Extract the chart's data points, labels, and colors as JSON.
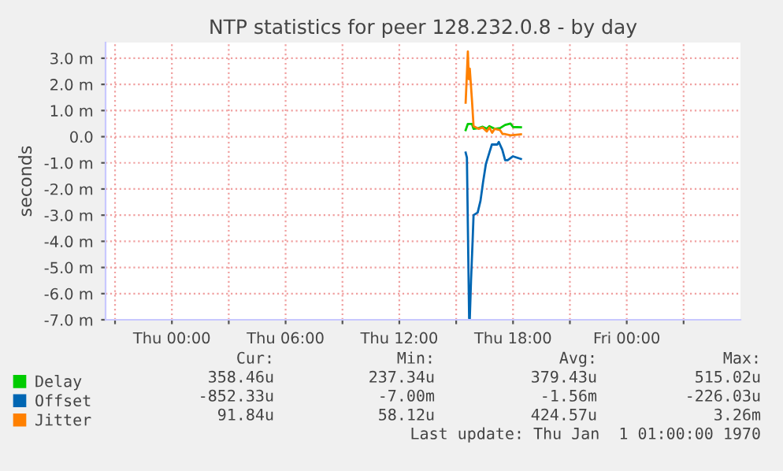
{
  "chart_data": {
    "type": "line",
    "title": "NTP statistics for peer 128.232.0.8 - by day",
    "ylabel": "seconds",
    "xlim": [
      "1969-12-31T20:30",
      "1970-01-02T06:00"
    ],
    "xticks": [
      {
        "value": "1969-12-31T21:00",
        "label": null
      },
      {
        "value": "1970-01-01T00:00",
        "label": "Thu 00:00"
      },
      {
        "value": "1970-01-01T03:00",
        "label": null
      },
      {
        "value": "1970-01-01T06:00",
        "label": "Thu 06:00"
      },
      {
        "value": "1970-01-01T09:00",
        "label": null
      },
      {
        "value": "1970-01-01T12:00",
        "label": "Thu 12:00"
      },
      {
        "value": "1970-01-01T15:00",
        "label": null
      },
      {
        "value": "1970-01-01T18:00",
        "label": "Thu 18:00"
      },
      {
        "value": "1970-01-01T21:00",
        "label": null
      },
      {
        "value": "1970-01-02T00:00",
        "label": "Fri 00:00"
      },
      {
        "value": "1970-01-02T03:00",
        "label": null
      }
    ],
    "ylim": [
      -7,
      3.6
    ],
    "yticks": [
      {
        "value": -7,
        "label": "-7.0 m"
      },
      {
        "value": -6,
        "label": "-6.0 m"
      },
      {
        "value": -5,
        "label": "-5.0 m"
      },
      {
        "value": -4,
        "label": "-4.0 m"
      },
      {
        "value": -3,
        "label": "-3.0 m"
      },
      {
        "value": -2,
        "label": "-2.0 m"
      },
      {
        "value": -1,
        "label": "-1.0 m"
      },
      {
        "value": 0,
        "label": "0.0"
      },
      {
        "value": 1,
        "label": "1.0 m"
      },
      {
        "value": 2,
        "label": "2.0 m"
      },
      {
        "value": 3,
        "label": "3.0 m"
      }
    ],
    "grid": true,
    "legend": "bottom",
    "series": [
      {
        "name": "Delay",
        "color": "#00cc00",
        "x": [
          "1970-01-01T15:30",
          "1970-01-01T15:37",
          "1970-01-01T15:50",
          "1970-01-01T15:55",
          "1970-01-01T16:11",
          "1970-01-01T16:24",
          "1970-01-01T16:37",
          "1970-01-01T16:45",
          "1970-01-01T17:02",
          "1970-01-01T17:19",
          "1970-01-01T17:35",
          "1970-01-01T17:52",
          "1970-01-01T18:00",
          "1970-01-01T18:25"
        ],
        "values": [
          0.25,
          0.49,
          0.49,
          0.3,
          0.33,
          0.38,
          0.3,
          0.4,
          0.3,
          0.33,
          0.45,
          0.5,
          0.37,
          0.36
        ]
      },
      {
        "name": "Offset",
        "color": "#0066b3",
        "x": [
          "1970-01-01T15:30",
          "1970-01-01T15:34",
          "1970-01-01T15:41",
          "1970-01-01T15:43",
          "1970-01-01T15:47",
          "1970-01-01T15:52",
          "1970-01-01T15:55",
          "1970-01-01T16:08",
          "1970-01-01T16:17",
          "1970-01-01T16:25",
          "1970-01-01T16:34",
          "1970-01-01T16:45",
          "1970-01-01T16:53",
          "1970-01-01T17:10",
          "1970-01-01T17:15",
          "1970-01-01T17:26",
          "1970-01-01T17:35",
          "1970-01-01T17:43",
          "1970-01-01T18:00",
          "1970-01-01T18:25"
        ],
        "values": [
          -0.61,
          -0.8,
          -6.94,
          -7.0,
          -5.5,
          -4.0,
          -3.0,
          -2.9,
          -2.45,
          -1.75,
          -1.05,
          -0.61,
          -0.3,
          -0.3,
          -0.2,
          -0.5,
          -0.9,
          -0.9,
          -0.75,
          -0.85
        ]
      },
      {
        "name": "Jitter",
        "color": "#ff8000",
        "x": [
          "1970-01-01T15:30",
          "1970-01-01T15:37",
          "1970-01-01T15:40",
          "1970-01-01T15:43",
          "1970-01-01T15:50",
          "1970-01-01T15:55",
          "1970-01-01T16:11",
          "1970-01-01T16:24",
          "1970-01-01T16:37",
          "1970-01-01T16:45",
          "1970-01-01T16:54",
          "1970-01-01T17:02",
          "1970-01-01T17:19",
          "1970-01-01T17:27",
          "1970-01-01T17:35",
          "1970-01-01T17:52",
          "1970-01-01T18:25"
        ],
        "values": [
          1.3,
          3.26,
          2.2,
          2.6,
          1.4,
          0.4,
          0.3,
          0.35,
          0.2,
          0.35,
          0.15,
          0.3,
          0.25,
          0.1,
          0.1,
          0.05,
          0.09
        ]
      }
    ],
    "annotations": [
      "Cur:",
      "Min:",
      "Avg:",
      "Max:",
      "358.46u",
      "237.34u",
      "379.43u",
      "515.02u",
      "-852.33u",
      "-7.00m",
      "-1.56m",
      "-226.03u",
      "91.84u",
      "58.12u",
      "424.57u",
      "3.26m",
      "Last update: Thu Jan  1 01:00:00 1970"
    ]
  }
}
